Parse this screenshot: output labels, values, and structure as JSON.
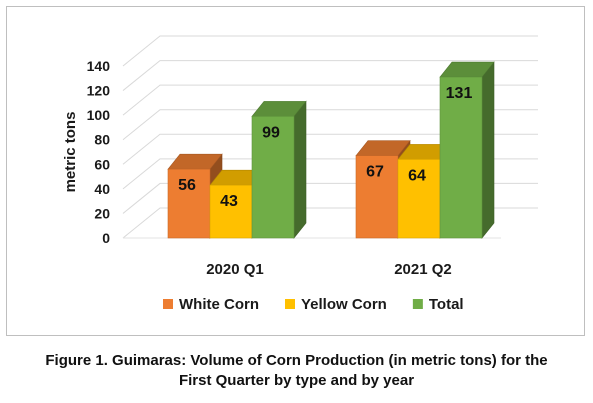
{
  "chart_data": {
    "type": "bar",
    "variant": "3d-clustered-column",
    "categories": [
      "2020 Q1",
      "2021 Q2"
    ],
    "series": [
      {
        "name": "White Corn",
        "values": [
          56,
          67
        ],
        "color": "#ed7d31"
      },
      {
        "name": "Yellow Corn",
        "values": [
          43,
          64
        ],
        "color": "#ffc000"
      },
      {
        "name": "Total",
        "values": [
          99,
          131
        ],
        "color": "#70ad47"
      }
    ],
    "data_labels": [
      [
        "56",
        "67"
      ],
      [
        "43",
        "64"
      ],
      [
        "99",
        "131"
      ]
    ],
    "title": "",
    "xlabel": "",
    "ylabel": "metric tons",
    "ylim": [
      0,
      140
    ],
    "yticks": [
      0,
      20,
      40,
      60,
      80,
      100,
      120,
      140
    ],
    "ytick_labels": [
      "0",
      "20",
      "40",
      "60",
      "80",
      "100",
      "120",
      "140"
    ],
    "grid": true,
    "legend_position": "bottom"
  },
  "caption": {
    "line1": "Figure 1. Guimaras: Volume of Corn Production (in metric tons) for the",
    "line2": "First Quarter by type and by year"
  }
}
